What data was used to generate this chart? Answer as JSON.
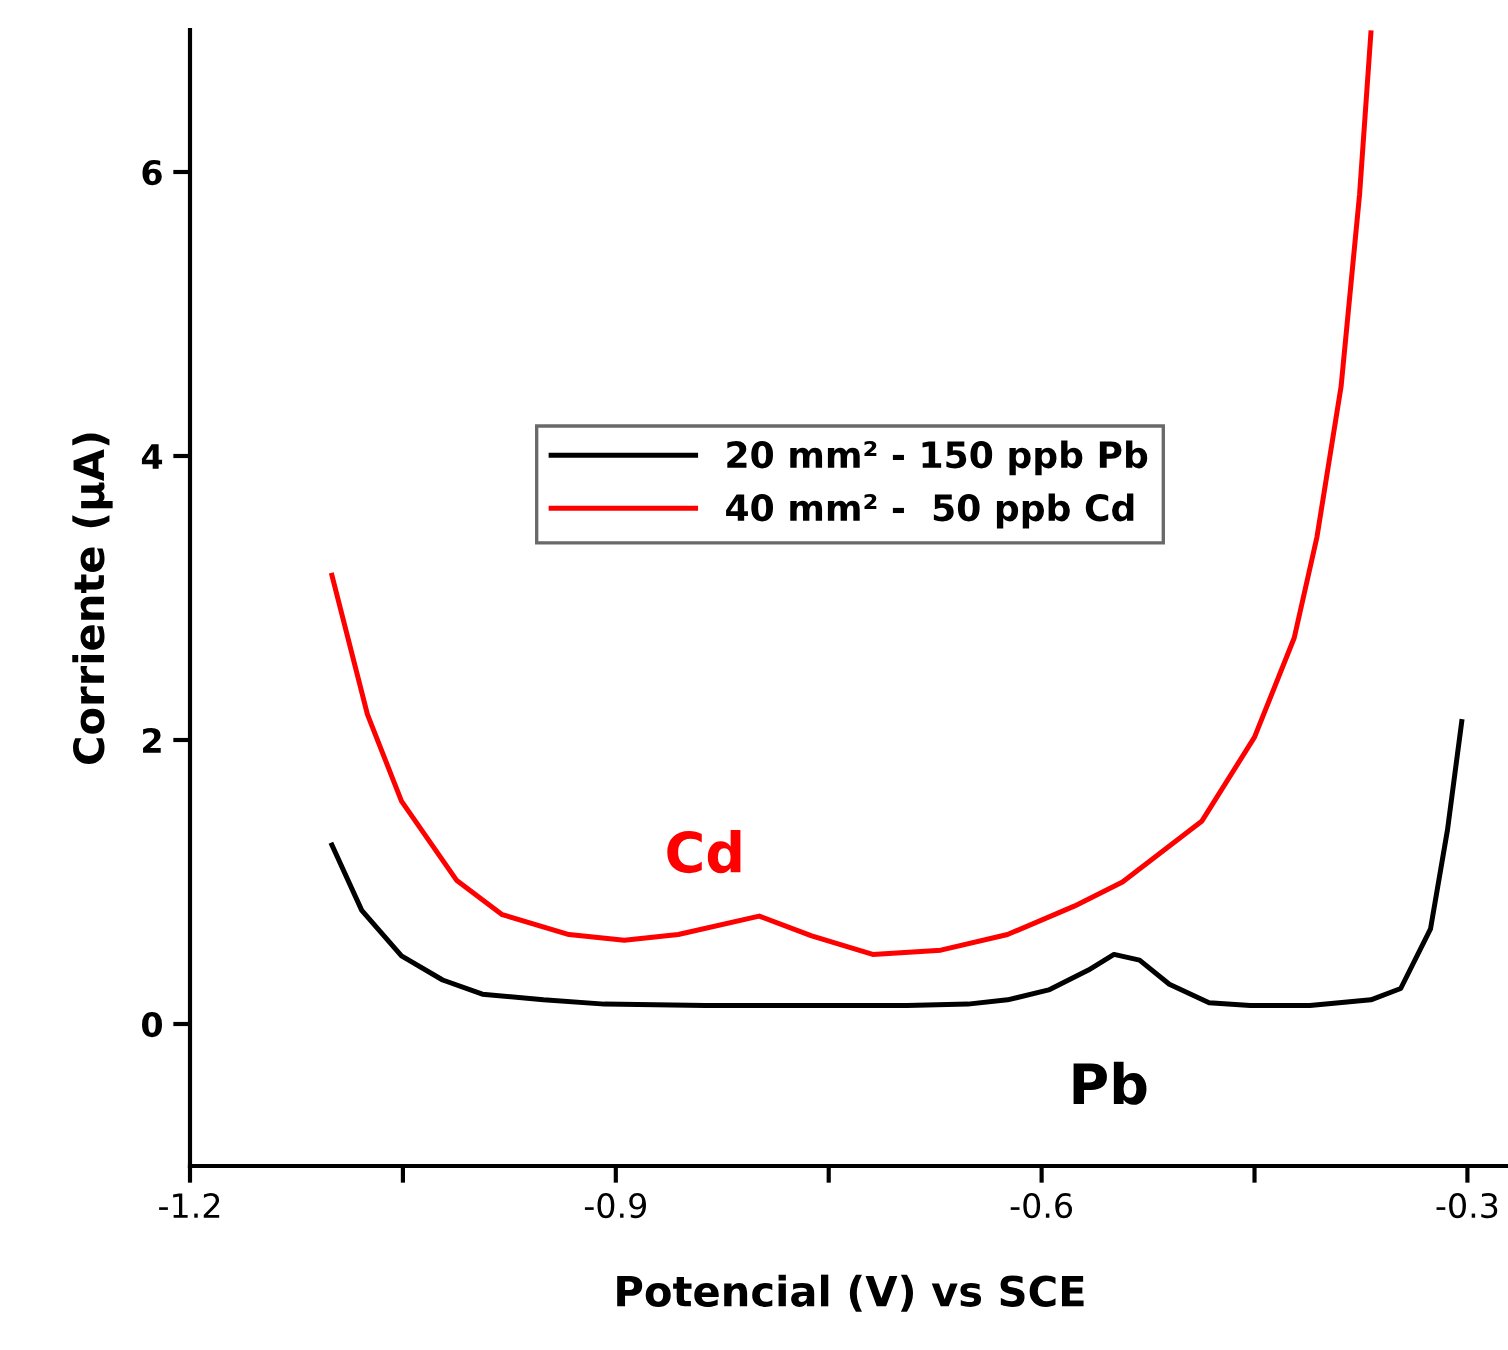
{
  "chart_data": {
    "type": "line",
    "xlabel": "Potencial (V) vs SCE",
    "ylabel": "Corriente (µA)",
    "xlim": [
      -1.2,
      -0.27
    ],
    "ylim": [
      -1,
      7
    ],
    "xticks": [
      -1.2,
      {
        "value": -1.05,
        "label": null
      },
      -0.9,
      {
        "value": -0.75,
        "label": null
      },
      -0.6,
      {
        "value": -0.45,
        "label": null
      },
      -0.3
    ],
    "yticks": [
      0,
      2,
      4,
      6
    ],
    "legend": "center",
    "grid": false,
    "marker": "none",
    "line_style": "solid",
    "series": [
      {
        "name": "20 mm² - 150 ppb Pb",
        "color": "#000000",
        "x": [
          -1.1,
          -1.079,
          -1.051,
          -1.022,
          -0.994,
          -0.951,
          -0.908,
          -0.837,
          -0.766,
          -0.695,
          -0.652,
          -0.624,
          -0.595,
          -0.567,
          -0.549,
          -0.531,
          -0.51,
          -0.482,
          -0.453,
          -0.411,
          -0.368,
          -0.347,
          -0.326,
          -0.314,
          -0.304
        ],
        "values": [
          1.26,
          0.8,
          0.48,
          0.31,
          0.21,
          0.17,
          0.14,
          0.13,
          0.13,
          0.13,
          0.14,
          0.17,
          0.24,
          0.38,
          0.49,
          0.45,
          0.28,
          0.15,
          0.13,
          0.13,
          0.17,
          0.25,
          0.67,
          1.37,
          2.13
        ]
      },
      {
        "name": "40 mm² -  50 ppb Cd",
        "color": "#ff0000",
        "x": [
          -1.1,
          -1.075,
          -1.051,
          -1.012,
          -0.98,
          -0.933,
          -0.894,
          -0.856,
          -0.799,
          -0.762,
          -0.719,
          -0.671,
          -0.624,
          -0.577,
          -0.543,
          -0.487,
          -0.45,
          -0.422,
          -0.406,
          -0.389,
          -0.376,
          -0.368
        ],
        "values": [
          3.16,
          2.18,
          1.57,
          1.01,
          0.77,
          0.63,
          0.59,
          0.63,
          0.76,
          0.62,
          0.49,
          0.52,
          0.63,
          0.83,
          1.0,
          1.43,
          2.02,
          2.72,
          3.43,
          4.49,
          5.84,
          6.98
        ]
      }
    ],
    "annotations": [
      "Pb",
      "Cd"
    ]
  }
}
